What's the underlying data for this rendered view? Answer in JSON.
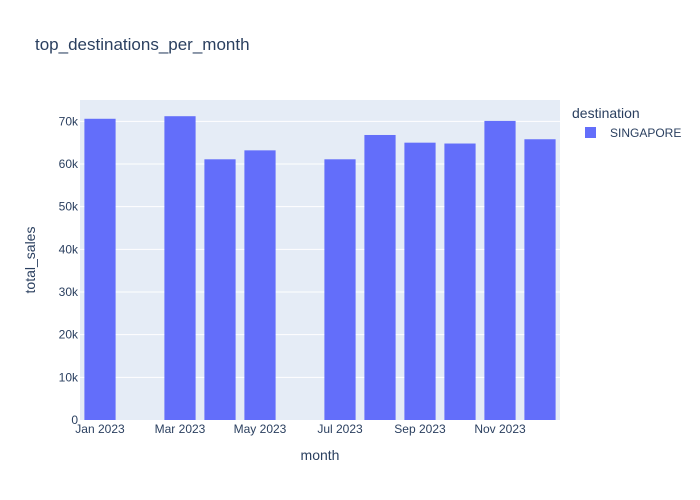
{
  "chart_data": {
    "type": "bar",
    "title": "top_destinations_per_month",
    "xlabel": "month",
    "ylabel": "total_sales",
    "x": [
      "2023-01",
      "2023-02",
      "2023-03",
      "2023-04",
      "2023-05",
      "2023-06",
      "2023-07",
      "2023-08",
      "2023-09",
      "2023-10",
      "2023-11",
      "2023-12"
    ],
    "x_tick_labels": [
      "Jan 2023",
      "Mar 2023",
      "May 2023",
      "Jul 2023",
      "Sep 2023",
      "Nov 2023"
    ],
    "x_tick_months": [
      "2023-01",
      "2023-03",
      "2023-05",
      "2023-07",
      "2023-09",
      "2023-11"
    ],
    "y_ticks": [
      0,
      10000,
      20000,
      30000,
      40000,
      50000,
      60000,
      70000
    ],
    "y_tick_labels": [
      "0",
      "10k",
      "20k",
      "30k",
      "40k",
      "50k",
      "60k",
      "70k"
    ],
    "ylim": [
      0,
      75000
    ],
    "grid": true,
    "legend": {
      "title": "destination",
      "placement": "right"
    },
    "series": [
      {
        "name": "SINGAPORE",
        "color": "#636efa",
        "values": [
          70600,
          null,
          71200,
          61100,
          63200,
          null,
          61100,
          66800,
          65000,
          64800,
          70100,
          65800
        ]
      }
    ]
  }
}
